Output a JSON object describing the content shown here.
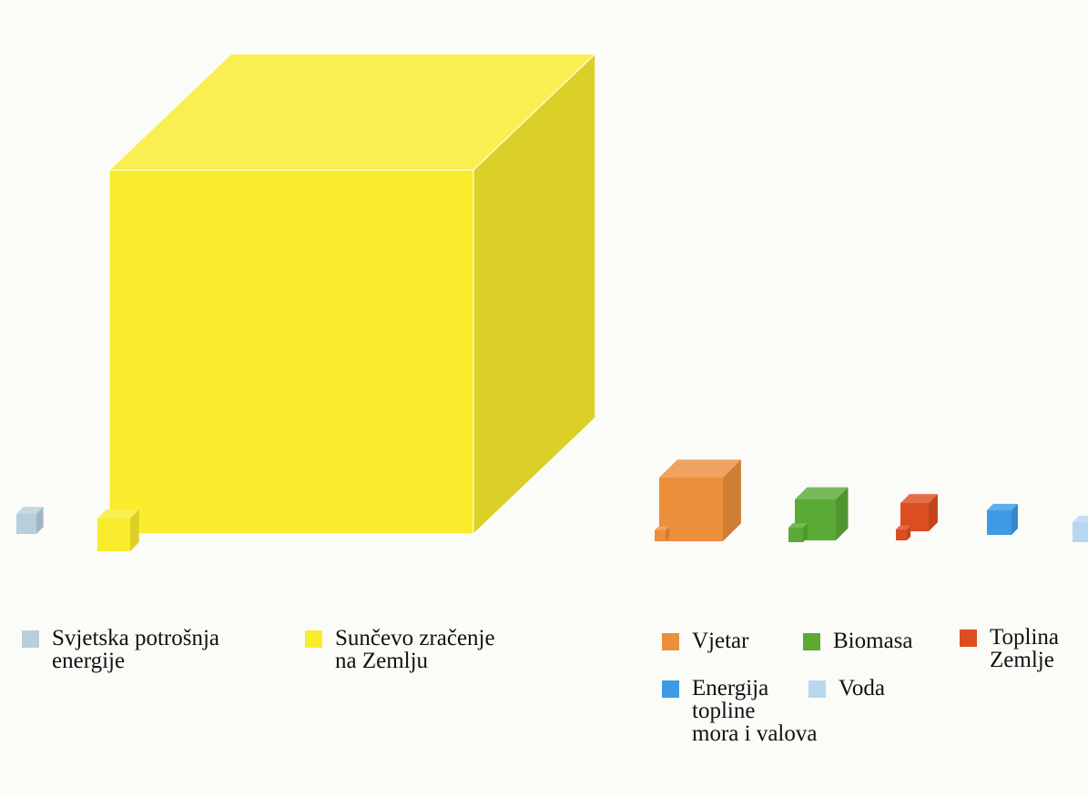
{
  "diagram": {
    "cubes": [
      {
        "id": "consumption",
        "label": "Svjetska potrošnja energije",
        "color": "#b7cfdb"
      },
      {
        "id": "solar",
        "label": "Sunčevo zračenje na Zemlju",
        "color": "#f9ec2c"
      },
      {
        "id": "wind",
        "label": "Vjetar",
        "color": "#ec8f3b"
      },
      {
        "id": "biomass",
        "label": "Biomasa",
        "color": "#5aaa35"
      },
      {
        "id": "geothermal",
        "label": "Toplina Zemlje",
        "color": "#dc4e20"
      },
      {
        "id": "ocean",
        "label": "Energija topline mora i valova",
        "color": "#3d9be6"
      },
      {
        "id": "hydro",
        "label": "Voda",
        "color": "#b8d6f1"
      }
    ]
  },
  "legend": {
    "consumption": {
      "text": "Svjetska potrošnja\nenergije",
      "color": "#b7cfdb"
    },
    "solar": {
      "text": "Sunčevo zračenje\nna Zemlju",
      "color": "#f9ec2c"
    },
    "wind": {
      "text": "Vjetar",
      "color": "#ec8f3b"
    },
    "biomass": {
      "text": "Biomasa",
      "color": "#5aaa35"
    },
    "geothermal": {
      "text": "Toplina\nZemlje",
      "color": "#dc4e20"
    },
    "ocean": {
      "text": "Energija\ntopline\nmora i valova",
      "color": "#3d9be6"
    },
    "hydro": {
      "text": "Voda",
      "color": "#b8d6f1"
    }
  }
}
